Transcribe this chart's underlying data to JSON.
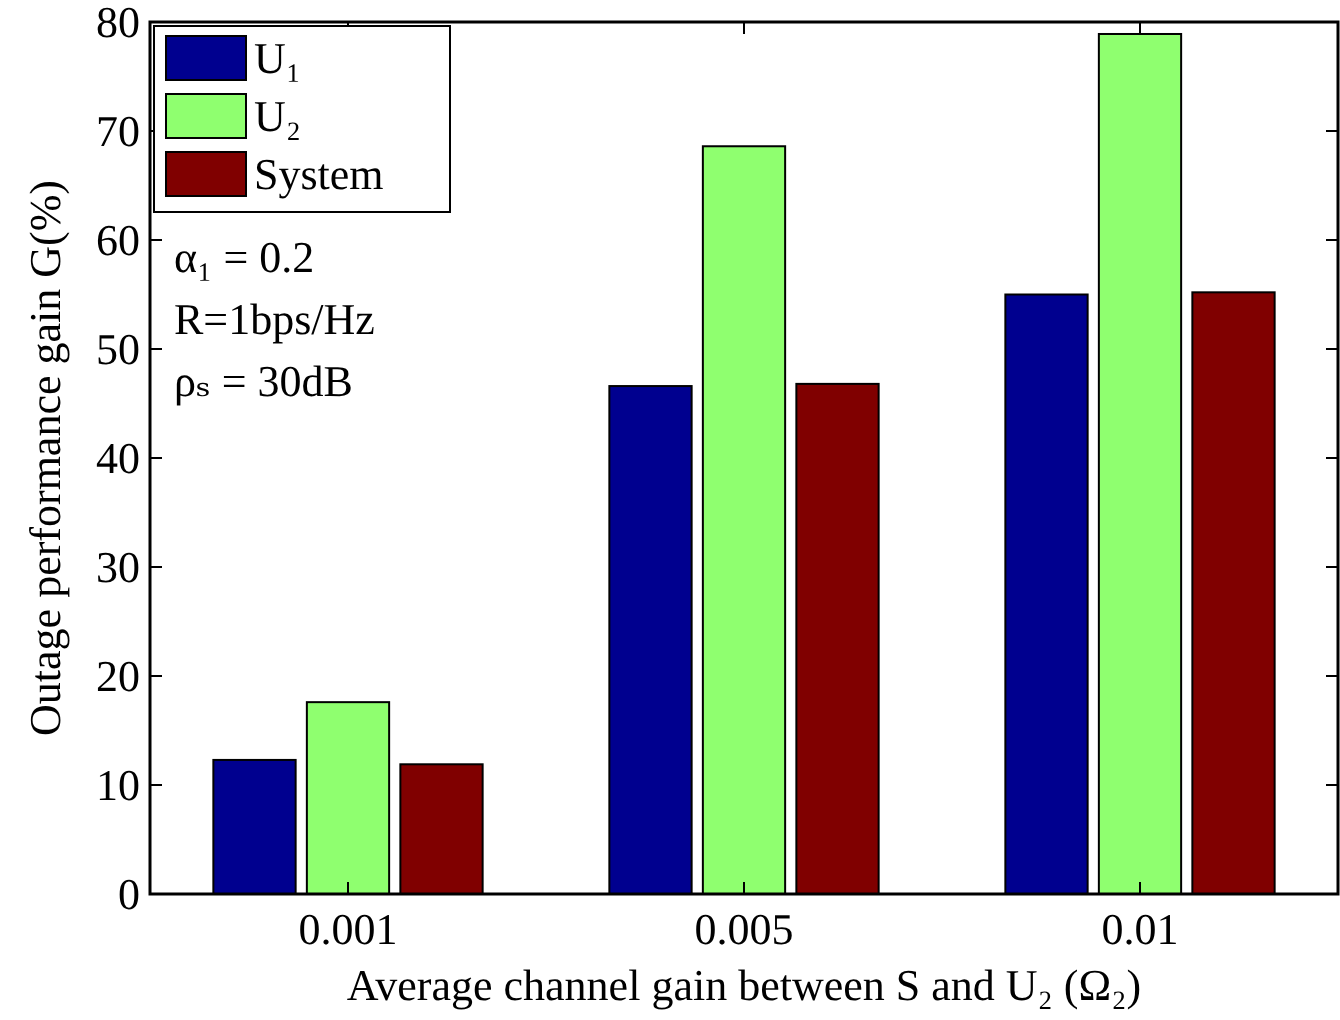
{
  "chart_data": {
    "type": "bar",
    "categories": [
      "0.001",
      "0.005",
      "0.01"
    ],
    "series": [
      {
        "name": "U₁",
        "color": "#00008f",
        "values": [
          12.3,
          46.6,
          55.0
        ]
      },
      {
        "name": "U₂",
        "color": "#8fff6f",
        "values": [
          17.6,
          68.6,
          78.9
        ]
      },
      {
        "name": "System",
        "color": "#800000",
        "values": [
          11.9,
          46.8,
          55.2
        ]
      }
    ],
    "xlabel": "Average channel gain between S and U₂ (Ω₂)",
    "ylabel": "Outage performance gain G(%)",
    "ylim": [
      0,
      80
    ],
    "yticks": [
      0,
      10,
      20,
      30,
      40,
      50,
      60,
      70,
      80
    ],
    "grid": false,
    "legend": "top left",
    "annotations": [
      "α₁ = 0.2",
      "R=1bps/Hz",
      "ρₛ = 30dB"
    ]
  }
}
